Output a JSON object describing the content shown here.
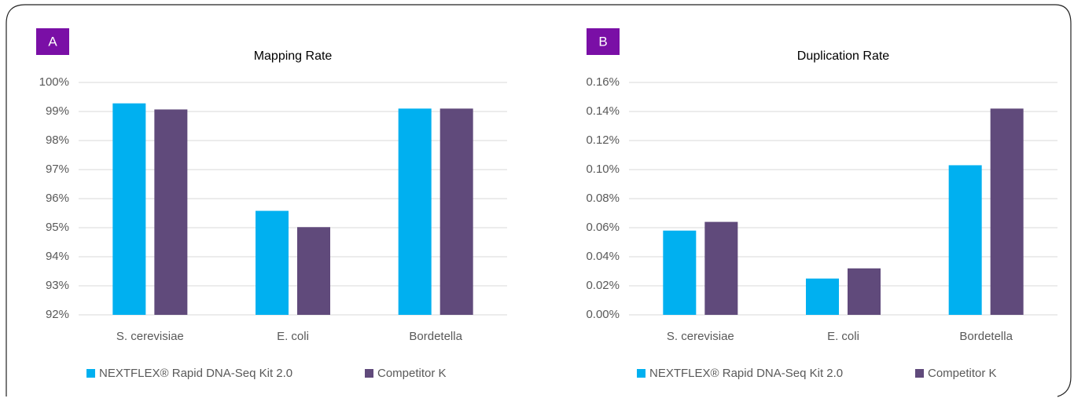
{
  "chart_data": [
    {
      "type": "bar",
      "panel_label": "A",
      "title": "Mapping Rate",
      "categories": [
        "S. cerevisiae",
        "E. coli",
        "Bordetella"
      ],
      "series": [
        {
          "name": "NEXTFLEX® Rapid DNA-Seq Kit 2.0",
          "color": "#00b0f0",
          "values": [
            99.28,
            95.58,
            99.1
          ]
        },
        {
          "name": "Competitor K",
          "color": "#604a7b",
          "values": [
            99.07,
            95.02,
            99.1
          ]
        }
      ],
      "ylim": [
        92,
        100
      ],
      "yticks": [
        {
          "value": 92,
          "label": "92%"
        },
        {
          "value": 93,
          "label": "93%"
        },
        {
          "value": 94,
          "label": "94%"
        },
        {
          "value": 95,
          "label": "95%"
        },
        {
          "value": 96,
          "label": "96%"
        },
        {
          "value": 97,
          "label": "97%"
        },
        {
          "value": 98,
          "label": "98%"
        },
        {
          "value": 99,
          "label": "99%"
        },
        {
          "value": 100,
          "label": "100%"
        }
      ],
      "grid": true,
      "legend": "bottom"
    },
    {
      "type": "bar",
      "panel_label": "B",
      "title": "Duplication Rate",
      "categories": [
        "S. cerevisiae",
        "E. coli",
        "Bordetella"
      ],
      "series": [
        {
          "name": "NEXTFLEX® Rapid DNA-Seq Kit 2.0",
          "color": "#00b0f0",
          "values": [
            0.058,
            0.025,
            0.103
          ]
        },
        {
          "name": "Competitor K",
          "color": "#604a7b",
          "values": [
            0.064,
            0.032,
            0.142
          ]
        }
      ],
      "ylim": [
        0,
        0.16
      ],
      "yticks": [
        {
          "value": 0,
          "label": "0.00%"
        },
        {
          "value": 0.02,
          "label": "0.02%"
        },
        {
          "value": 0.04,
          "label": "0.04%"
        },
        {
          "value": 0.06,
          "label": "0.06%"
        },
        {
          "value": 0.08,
          "label": "0.08%"
        },
        {
          "value": 0.1,
          "label": "0.10%"
        },
        {
          "value": 0.12,
          "label": "0.12%"
        },
        {
          "value": 0.14,
          "label": "0.14%"
        },
        {
          "value": 0.16,
          "label": "0.16%"
        }
      ],
      "grid": true,
      "legend": "bottom"
    }
  ]
}
